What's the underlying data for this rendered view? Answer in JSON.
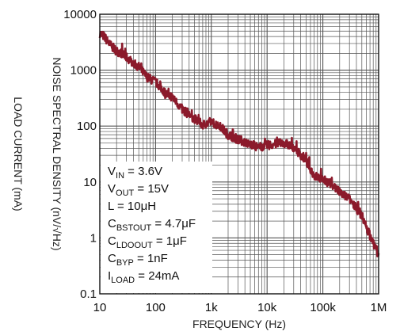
{
  "chart_data": {
    "type": "line",
    "xlabel": "FREQUENCY (Hz)",
    "ylabel": "NOISE SPECTRAL DENSITY (nV/√Hz)",
    "secondary_ylabel": "LOAD CURRENT (mA)",
    "x_scale": "log",
    "y_scale": "log",
    "xlim": [
      10,
      1000000
    ],
    "ylim": [
      0.1,
      10000
    ],
    "grid": true,
    "x_ticks": [
      "10",
      "100",
      "1k",
      "10k",
      "100k",
      "1M"
    ],
    "y_ticks": [
      "10000",
      "1000",
      "100",
      "10",
      "1",
      "0.1"
    ],
    "series_color": "#8b1a2b",
    "series": [
      {
        "x": [
          10,
          12,
          15,
          20,
          25,
          30,
          40,
          50,
          70,
          100,
          150,
          200,
          300,
          500,
          700,
          1000,
          1500,
          2000,
          3000,
          5000,
          7000,
          10000,
          15000,
          20000,
          30000,
          50000,
          70000,
          100000,
          150000,
          200000,
          300000,
          500000,
          700000,
          1000000
        ],
        "y": [
          4500,
          4000,
          2900,
          2200,
          2000,
          1700,
          1350,
          1150,
          750,
          620,
          390,
          330,
          200,
          135,
          105,
          120,
          95,
          70,
          58,
          47,
          42,
          45,
          48,
          50,
          42,
          24,
          13,
          11,
          9,
          6.5,
          5,
          2.5,
          1.1,
          0.5
        ]
      }
    ],
    "annotations": [
      {
        "main": "V",
        "sub": "IN",
        "rest": " = 3.6V"
      },
      {
        "main": "V",
        "sub": "OUT",
        "rest": " = 15V"
      },
      {
        "main": "L = 10μH",
        "sub": "",
        "rest": ""
      },
      {
        "main": "C",
        "sub": "BSTOUT",
        "rest": " = 4.7μF"
      },
      {
        "main": "C",
        "sub": "LDOOUT",
        "rest": " = 1μF"
      },
      {
        "main": "C",
        "sub": "BYP",
        "rest": " = 1nF"
      },
      {
        "main": "I",
        "sub": "LOAD",
        "rest": " = 24mA"
      }
    ]
  }
}
